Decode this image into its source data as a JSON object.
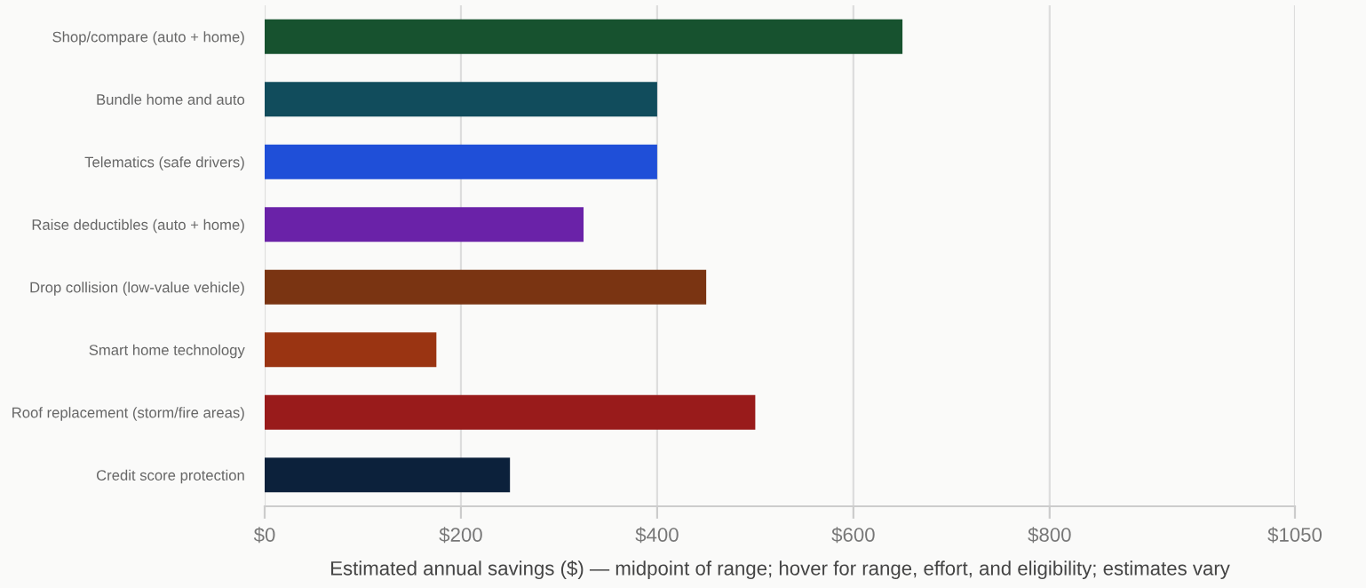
{
  "chart_data": {
    "type": "bar",
    "orientation": "horizontal",
    "xlabel": "Estimated annual savings ($) — midpoint of range; hover for range, effort, and eligibility; estimates vary",
    "categories": [
      "Shop/compare (auto + home)",
      "Bundle home and auto",
      "Telematics (safe drivers)",
      "Raise deductibles (auto + home)",
      "Drop collision (low-value vehicle)",
      "Smart home technology",
      "Roof replacement (storm/fire areas)",
      "Credit score protection"
    ],
    "values": [
      650,
      400,
      400,
      325,
      450,
      175,
      500,
      250
    ],
    "colors": [
      "#17522f",
      "#114c5c",
      "#1f4fd8",
      "#6a22a8",
      "#7a3412",
      "#9a3412",
      "#991b1b",
      "#0c213b"
    ],
    "xlim": [
      0,
      1050
    ],
    "xticks": [
      {
        "value": 0,
        "label": "$0"
      },
      {
        "value": 200,
        "label": "$200"
      },
      {
        "value": 400,
        "label": "$400"
      },
      {
        "value": 600,
        "label": "$600"
      },
      {
        "value": 800,
        "label": "$800"
      },
      {
        "value": 1050,
        "label": "$1050"
      }
    ],
    "grid": "x",
    "legend": false
  }
}
